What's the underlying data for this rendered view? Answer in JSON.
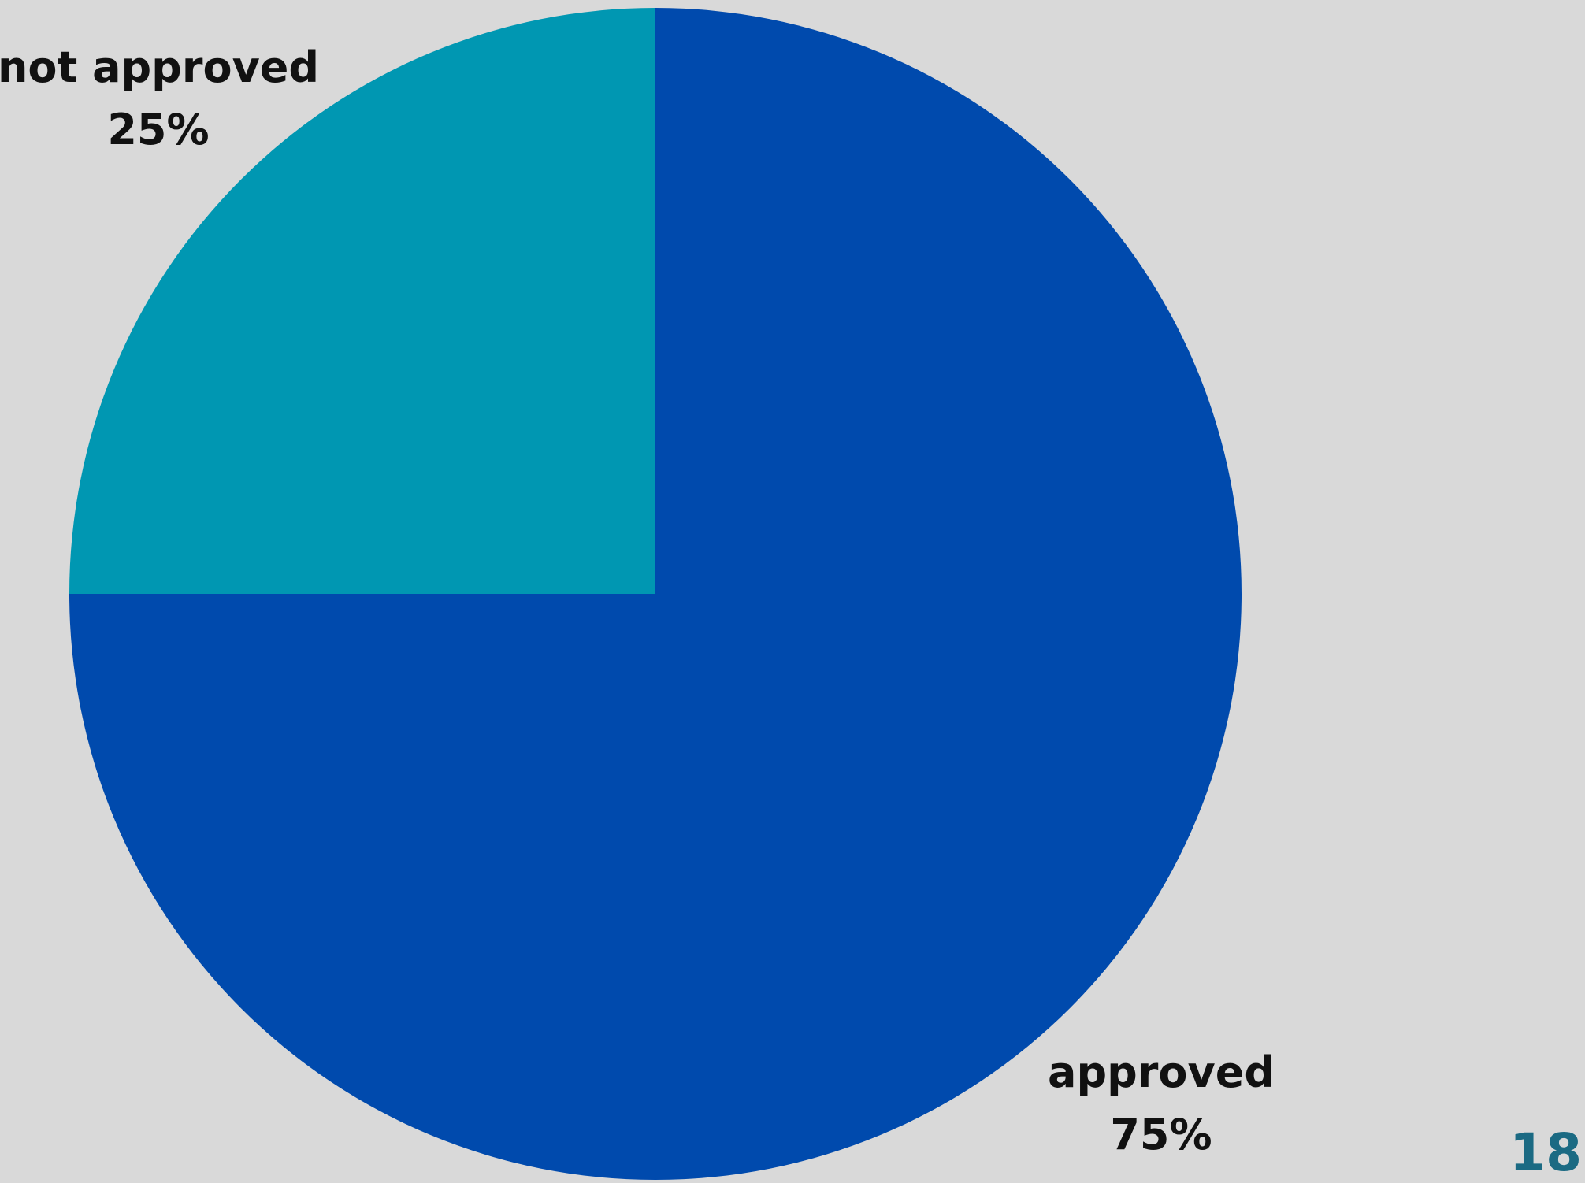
{
  "chart_data": {
    "type": "pie",
    "slices": [
      {
        "label": "approved",
        "value": 75,
        "value_label": "75%",
        "color": "#004aad"
      },
      {
        "label": "not approved",
        "value": 25,
        "value_label": "25%",
        "color": "#0097b2"
      }
    ]
  },
  "page": {
    "number": "18",
    "background": "#d9d9d9",
    "number_color": "#1b6a83"
  }
}
